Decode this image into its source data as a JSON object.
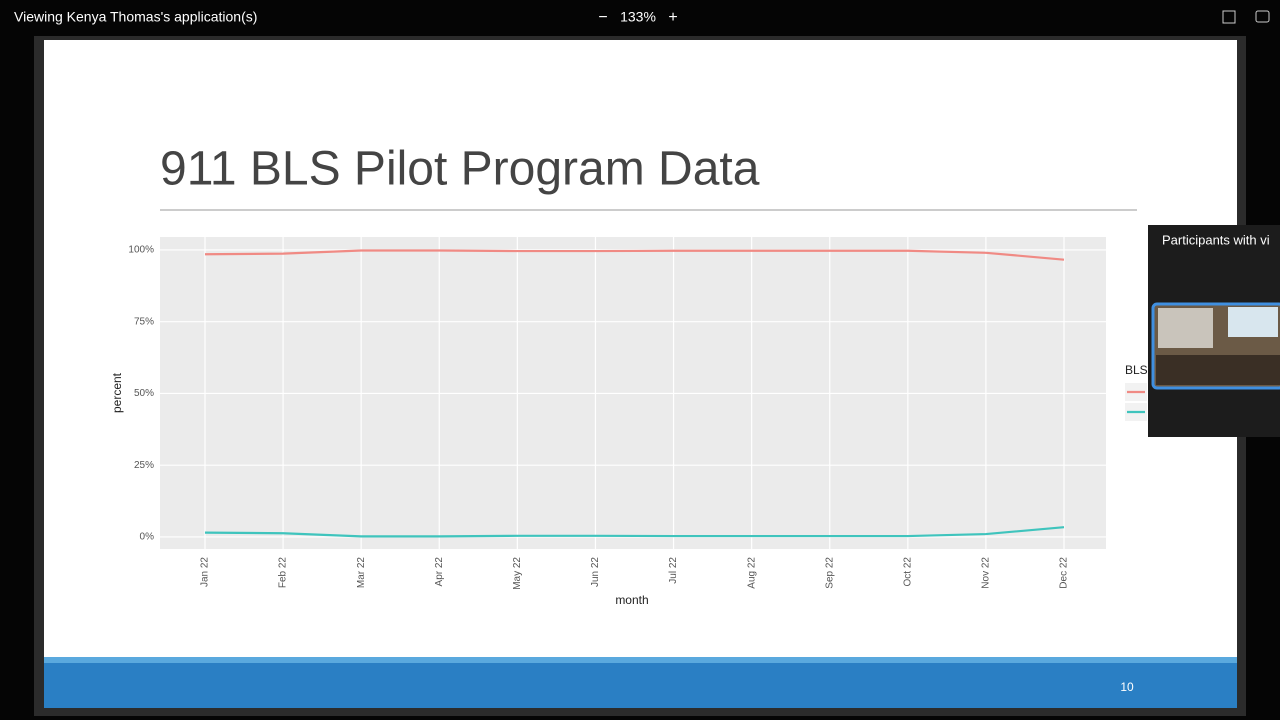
{
  "toolbar": {
    "title": "Viewing Kenya Thomas's application(s)",
    "zoom": "133%"
  },
  "slide": {
    "number": "10"
  },
  "participants": {
    "header": "Participants with vi"
  },
  "chart_data": {
    "type": "line",
    "title": "911 BLS Pilot Program Data",
    "x_label": "month",
    "y_label": "percent",
    "legend_title": "BLS",
    "categories": [
      "Jan 22",
      "Feb 22",
      "Mar 22",
      "Apr 22",
      "May 22",
      "Jun 22",
      "Jul 22",
      "Aug 22",
      "Sep 22",
      "Oct 22",
      "Nov 22",
      "Dec 22"
    ],
    "series": [
      {
        "color": "#f08a84",
        "values": [
          98.5,
          98.7,
          99.8,
          99.8,
          99.6,
          99.6,
          99.7,
          99.7,
          99.7,
          99.7,
          99,
          96.6
        ]
      },
      {
        "color": "#3fc4bd",
        "values": [
          1.5,
          1.3,
          0.2,
          0.2,
          0.4,
          0.4,
          0.3,
          0.3,
          0.3,
          0.3,
          1,
          3.4
        ]
      }
    ],
    "ylim": [
      -4.2,
      104.5
    ],
    "yticks": [
      {
        "value": 0,
        "label": "0%"
      },
      {
        "value": 25,
        "label": "25%"
      },
      {
        "value": 50,
        "label": "50%"
      },
      {
        "value": 75,
        "label": "75%"
      },
      {
        "value": 100,
        "label": "100%"
      }
    ],
    "grid": true
  }
}
